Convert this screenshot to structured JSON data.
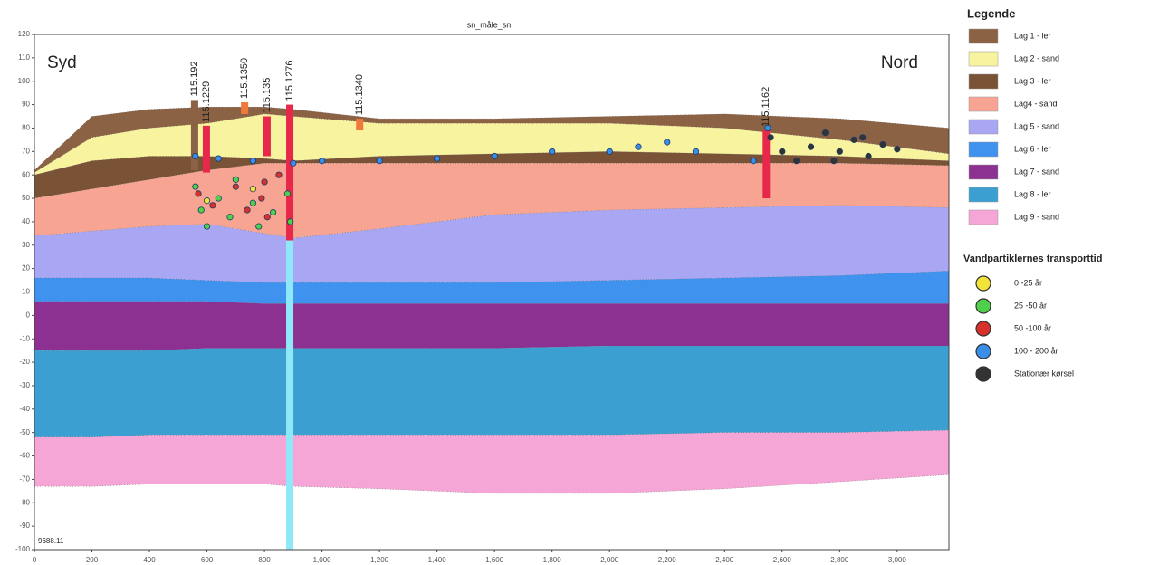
{
  "chart_data": {
    "type": "cross-section",
    "title": "sn_måle_sn",
    "annotations": [
      "Syd",
      "Nord",
      "9688.11"
    ],
    "legend_title": "Legende",
    "particles_title": "Vandpartiklernes transporttid",
    "x": [
      0,
      200,
      400,
      600,
      800,
      900,
      1200,
      1600,
      2000,
      2400,
      2800,
      3180
    ],
    "boundaries": [
      [
        62,
        85,
        88,
        89,
        89,
        88,
        84,
        84,
        85,
        86,
        84,
        80
      ],
      [
        61,
        76,
        80,
        82,
        86,
        85,
        82,
        82,
        82,
        80,
        75,
        69
      ],
      [
        60,
        66,
        68,
        68,
        67,
        66,
        68,
        69,
        70,
        69,
        68,
        66
      ],
      [
        50,
        54,
        58,
        62,
        65,
        65,
        65,
        65,
        65,
        65,
        65,
        64
      ],
      [
        34,
        36,
        38,
        39,
        35,
        33,
        37,
        43,
        45,
        46,
        47,
        46
      ],
      [
        16,
        16,
        16,
        15,
        14,
        14,
        14,
        14,
        15,
        16,
        17,
        19
      ],
      [
        6,
        6,
        6,
        6,
        5,
        5,
        5,
        5,
        5,
        5,
        5,
        5
      ],
      [
        -15,
        -15,
        -15,
        -14,
        -14,
        -14,
        -14,
        -14,
        -13,
        -13,
        -13,
        -13
      ],
      [
        -52,
        -52,
        -51,
        -51,
        -51,
        -51,
        -51,
        -51,
        -51,
        -50,
        -50,
        -49
      ],
      [
        -73,
        -73,
        -72,
        -72,
        -72,
        -73,
        -74,
        -76,
        -76,
        -74,
        -71,
        -68
      ]
    ],
    "layers": [
      {
        "name": "Lag 1 - ler",
        "color": "#8c6244"
      },
      {
        "name": "Lag 2 - sand",
        "color": "#f8f39e"
      },
      {
        "name": "Lag 3 - ler",
        "color": "#7a5236"
      },
      {
        "name": "Lag4 - sand",
        "color": "#f7a592"
      },
      {
        "name": "Lag 5 - sand",
        "color": "#a9a6f4"
      },
      {
        "name": "Lag 6 - ler",
        "color": "#3f92ee"
      },
      {
        "name": "Lag 7 - sand",
        "color": "#8c3191"
      },
      {
        "name": "Lag 8 - ler",
        "color": "#3c9fd2"
      },
      {
        "name": "Lag 9 - sand",
        "color": "#f6a6d6"
      }
    ],
    "wells": [
      {
        "label": "115.192",
        "x": 557,
        "top": 92,
        "bottom": 62,
        "color": "#8c6244"
      },
      {
        "label": "115.1229",
        "x": 598,
        "top": 81,
        "bottom": 61,
        "color": "#e8284a"
      },
      {
        "label": "115.1350",
        "x": 731,
        "top": 91,
        "bottom": 86,
        "color": "#f07a3c"
      },
      {
        "label": "115.135",
        "x": 809,
        "top": 85,
        "bottom": 68,
        "color": "#e8284a"
      },
      {
        "label": "115.1276",
        "x": 888,
        "top": 90,
        "bottom": 32,
        "color": "#e8284a"
      },
      {
        "x": 888,
        "top": 32,
        "bottom": -100,
        "color": "#8ee8f8"
      },
      {
        "label": "115.1340",
        "x": 1131,
        "top": 84,
        "bottom": 79,
        "color": "#f07a3c"
      },
      {
        "label": "115.1162",
        "x": 2545,
        "top": 79,
        "bottom": 50,
        "color": "#e8284a"
      }
    ],
    "series": [
      {
        "name": "0 -25 år",
        "color": "#f4e43a",
        "x": [
          600,
          760
        ],
        "values": [
          49,
          54
        ]
      },
      {
        "name": "25 -50 år",
        "color": "#4fd04a",
        "x": [
          560,
          580,
          600,
          640,
          680,
          700,
          760,
          780,
          830,
          880,
          890
        ],
        "values": [
          55,
          45,
          38,
          50,
          42,
          58,
          48,
          38,
          44,
          52,
          40
        ]
      },
      {
        "name": "50 -100 år",
        "color": "#d8302a",
        "x": [
          570,
          620,
          700,
          740,
          790,
          800,
          810,
          850
        ],
        "values": [
          52,
          47,
          55,
          45,
          50,
          57,
          42,
          60
        ]
      },
      {
        "name": "100 - 200 år",
        "color": "#3a8ee8",
        "x": [
          560,
          640,
          760,
          900,
          1000,
          1200,
          1400,
          1600,
          1800,
          2000,
          2100,
          2200,
          2300,
          2500,
          2550
        ],
        "values": [
          68,
          67,
          66,
          65,
          66,
          66,
          67,
          68,
          70,
          70,
          72,
          74,
          70,
          66,
          80
        ]
      },
      {
        "name": "Stationær kørsel",
        "color": "#333333",
        "x": [
          2560,
          2600,
          2700,
          2750,
          2800,
          2850,
          2900,
          2950,
          3000,
          2650,
          2780,
          2880
        ],
        "values": [
          76,
          70,
          72,
          78,
          70,
          75,
          68,
          73,
          71,
          66,
          66,
          76
        ]
      }
    ],
    "xlim": [
      0,
      3180
    ],
    "ylim": [
      -100,
      120
    ],
    "xticks": [
      0,
      200,
      400,
      600,
      800,
      {
        "value": 1000,
        "label": "1,000"
      },
      {
        "value": 1200,
        "label": "1,200"
      },
      {
        "value": 1400,
        "label": "1,400"
      },
      {
        "value": 1600,
        "label": "1,600"
      },
      {
        "value": 1800,
        "label": "1,800"
      },
      {
        "value": 2000,
        "label": "2,000"
      },
      {
        "value": 2200,
        "label": "2,200"
      },
      {
        "value": 2400,
        "label": "2,400"
      },
      {
        "value": 2600,
        "label": "2,600"
      },
      {
        "value": 2800,
        "label": "2,800"
      },
      {
        "value": 3000,
        "label": "3,000"
      }
    ],
    "yticks": [
      120,
      110,
      100,
      90,
      80,
      70,
      60,
      50,
      40,
      30,
      20,
      10,
      0,
      -10,
      -20,
      -30,
      -40,
      -50,
      -60,
      -70,
      -80,
      -90,
      -100
    ]
  }
}
